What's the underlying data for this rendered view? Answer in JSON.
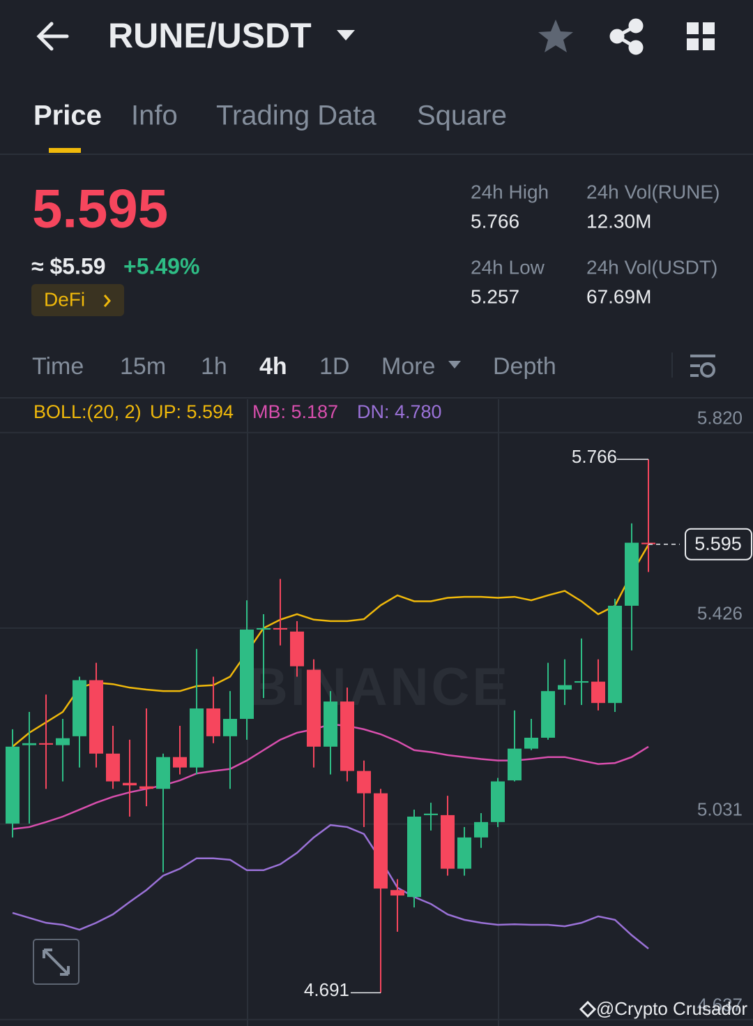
{
  "header": {
    "pair": "RUNE/USDT"
  },
  "tabs": [
    "Price",
    "Info",
    "Trading Data",
    "Square"
  ],
  "price": {
    "last": "5.595",
    "usd": "≈ $5.59",
    "change": "+5.49%",
    "tag": "DeFi"
  },
  "stats": [
    {
      "label": "24h High",
      "value": "5.766"
    },
    {
      "label": "24h Vol(RUNE)",
      "value": "12.30M"
    },
    {
      "label": "24h Low",
      "value": "5.257"
    },
    {
      "label": "24h Vol(USDT)",
      "value": "67.69M"
    }
  ],
  "intervals": [
    "Time",
    "15m",
    "1h",
    "4h",
    "1D",
    "More",
    "Depth"
  ],
  "indicator": [
    "BOLL:(20, 2)",
    "UP: 5.594",
    "MB: 5.187",
    "DN: 4.780"
  ],
  "watermark": "BINANCE",
  "credit": "@Crypto Crusador",
  "chart_data": {
    "type": "candlestick",
    "ylim": [
      4.624,
      5.883
    ],
    "yticks": [
      {
        "value": 5.82,
        "label": "5.820"
      },
      5.426,
      5.031,
      4.637
    ],
    "grid": true,
    "up_color": "#2ebd85",
    "down_color": "#f6465d",
    "open": [
      5.032,
      5.19,
      5.194,
      5.19,
      5.208,
      5.321,
      5.173,
      5.114,
      5.107,
      5.102,
      5.166,
      5.145,
      5.264,
      5.208,
      5.243,
      5.423,
      5.426,
      5.419,
      5.342,
      5.187,
      5.278,
      5.138,
      5.093,
      4.898,
      4.884,
      5.049,
      5.049,
      4.941,
      5.004,
      5.035,
      5.119,
      5.183,
      5.205,
      5.302,
      5.316,
      5.318,
      5.275,
      5.471,
      5.598
    ],
    "high": [
      5.222,
      5.257,
      5.292,
      5.243,
      5.328,
      5.356,
      5.229,
      5.201,
      5.264,
      5.173,
      5.229,
      5.384,
      5.328,
      5.299,
      5.482,
      5.454,
      5.525,
      5.44,
      5.363,
      5.299,
      5.306,
      5.159,
      5.102,
      4.92,
      5.06,
      5.074,
      5.088,
      5.025,
      5.053,
      5.124,
      5.26,
      5.243,
      5.356,
      5.363,
      5.405,
      5.363,
      5.485,
      5.637,
      5.766
    ],
    "low": [
      5.004,
      5.032,
      5.102,
      5.117,
      5.145,
      5.145,
      5.102,
      5.046,
      5.067,
      4.934,
      5.131,
      5.131,
      5.194,
      5.102,
      5.201,
      5.285,
      5.391,
      5.328,
      5.145,
      5.131,
      5.117,
      5.025,
      4.691,
      4.814,
      4.863,
      5.018,
      4.927,
      4.927,
      4.983,
      5.025,
      5.117,
      5.18,
      5.201,
      5.271,
      5.271,
      5.26,
      5.257,
      5.381,
      5.539
    ],
    "close": [
      5.187,
      5.194,
      5.191,
      5.204,
      5.321,
      5.173,
      5.117,
      5.109,
      5.102,
      5.166,
      5.145,
      5.264,
      5.208,
      5.243,
      5.423,
      5.426,
      5.423,
      5.349,
      5.187,
      5.278,
      5.138,
      5.093,
      4.901,
      4.887,
      5.046,
      5.052,
      4.941,
      5.004,
      5.035,
      5.117,
      5.183,
      5.205,
      5.299,
      5.311,
      5.319,
      5.275,
      5.471,
      5.598,
      5.595
    ],
    "series": [
      {
        "color": "#f0b90b",
        "values": [
          5.187,
          5.215,
          5.236,
          5.257,
          5.306,
          5.316,
          5.313,
          5.306,
          5.302,
          5.299,
          5.299,
          5.309,
          5.311,
          5.328,
          5.377,
          5.426,
          5.443,
          5.454,
          5.443,
          5.44,
          5.44,
          5.444,
          5.472,
          5.492,
          5.48,
          5.48,
          5.487,
          5.489,
          5.489,
          5.487,
          5.489,
          5.482,
          5.492,
          5.501,
          5.48,
          5.454,
          5.471,
          5.536,
          5.594
        ]
      },
      {
        "color": "#d94fae",
        "values": [
          5.021,
          5.025,
          5.035,
          5.046,
          5.06,
          5.074,
          5.086,
          5.095,
          5.102,
          5.109,
          5.119,
          5.133,
          5.138,
          5.142,
          5.159,
          5.18,
          5.201,
          5.215,
          5.222,
          5.232,
          5.229,
          5.222,
          5.212,
          5.198,
          5.18,
          5.176,
          5.17,
          5.166,
          5.162,
          5.159,
          5.159,
          5.162,
          5.166,
          5.166,
          5.159,
          5.152,
          5.154,
          5.166,
          5.187
        ]
      },
      {
        "color": "#9b72d8",
        "values": [
          4.852,
          4.842,
          4.832,
          4.828,
          4.818,
          4.832,
          4.849,
          4.874,
          4.898,
          4.927,
          4.941,
          4.962,
          4.962,
          4.959,
          4.938,
          4.938,
          4.95,
          4.973,
          5.004,
          5.029,
          5.025,
          5.011,
          4.959,
          4.903,
          4.884,
          4.87,
          4.849,
          4.838,
          4.832,
          4.828,
          4.829,
          4.828,
          4.828,
          4.825,
          4.832,
          4.845,
          4.838,
          4.807,
          4.78
        ]
      }
    ],
    "high_label": "5.766",
    "low_label": "4.691",
    "last_label": "5.595"
  }
}
